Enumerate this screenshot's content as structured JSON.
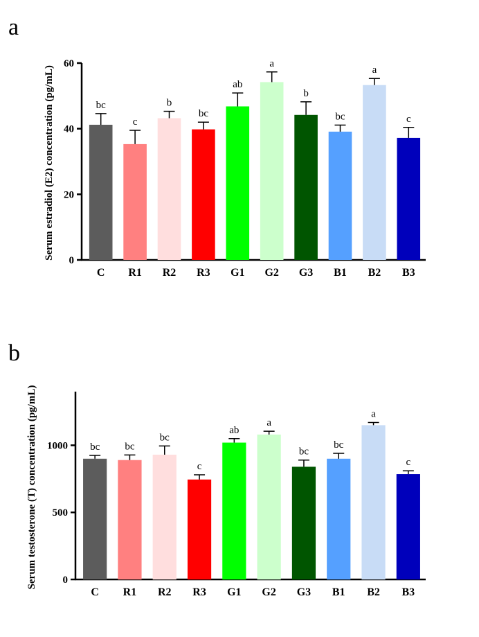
{
  "chart_data": [
    {
      "type": "bar",
      "panel_label": "a",
      "categories": [
        "C",
        "R1",
        "R2",
        "R3",
        "G1",
        "G2",
        "G3",
        "B1",
        "B2",
        "B3"
      ],
      "values": [
        41.2,
        35.3,
        43.2,
        39.8,
        46.8,
        54.2,
        44.2,
        39.1,
        53.3,
        37.2
      ],
      "errors": [
        3.4,
        4.2,
        2.1,
        2.2,
        4.1,
        3.1,
        4.0,
        2.0,
        2.0,
        3.2
      ],
      "significance": [
        "bc",
        "c",
        "b",
        "bc",
        "ab",
        "a",
        "b",
        "bc",
        "a",
        "c"
      ],
      "colors": [
        "#5c5c5c",
        "#ff8080",
        "#ffdede",
        "#ff0000",
        "#00ff00",
        "#ccffcc",
        "#005500",
        "#55a0ff",
        "#c8dcf6",
        "#0000bb"
      ],
      "ylabel": "Serum estradiol (E2) concentration (pg/mL)",
      "xlabel": "",
      "ylim": [
        0,
        60
      ],
      "yticks": [
        "0",
        "20",
        "40",
        "60"
      ],
      "grid": false
    },
    {
      "type": "bar",
      "panel_label": "b",
      "categories": [
        "C",
        "R1",
        "R2",
        "R3",
        "G1",
        "G2",
        "G3",
        "B1",
        "B2",
        "B3"
      ],
      "values": [
        900,
        890,
        930,
        745,
        1020,
        1080,
        840,
        900,
        1150,
        785
      ],
      "errors": [
        25,
        38,
        65,
        35,
        30,
        25,
        50,
        40,
        20,
        25
      ],
      "significance": [
        "bc",
        "bc",
        "bc",
        "c",
        "ab",
        "a",
        "bc",
        "bc",
        "a",
        "c"
      ],
      "colors": [
        "#5c5c5c",
        "#ff8080",
        "#ffdede",
        "#ff0000",
        "#00ff00",
        "#ccffcc",
        "#005500",
        "#55a0ff",
        "#c8dcf6",
        "#0000bb"
      ],
      "ylabel": "Serum testosterone (T) concentration (pg/mL)",
      "xlabel": "",
      "ylim": [
        0,
        1400
      ],
      "yticks": [
        "0",
        "500",
        "1000"
      ],
      "grid": false
    }
  ]
}
